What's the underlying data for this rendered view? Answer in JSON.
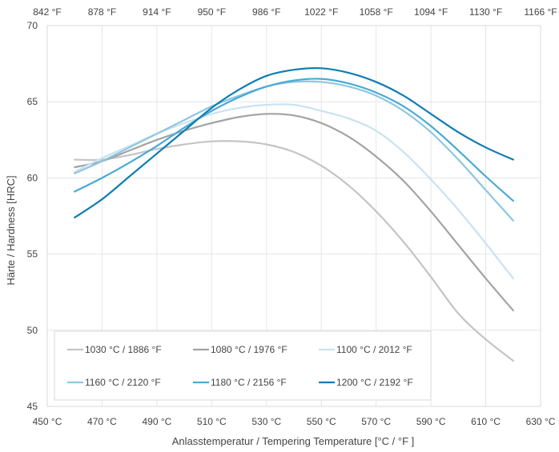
{
  "chart_data": {
    "type": "line",
    "title": "",
    "xlabel": "Anlasstemperatur / Tempering Temperature  [°C / °F ]",
    "ylabel": "Härte / Hardness [HRC]",
    "xlim": [
      450,
      630
    ],
    "ylim": [
      45,
      70
    ],
    "x_ticks": [
      450,
      470,
      490,
      510,
      530,
      550,
      570,
      590,
      610,
      630
    ],
    "x_tick_labels": [
      "450 °C",
      "470 °C",
      "490 °C",
      "510 °C",
      "530 °C",
      "550 °C",
      "570 °C",
      "590 °C",
      "610 °C",
      "630 °C"
    ],
    "x_top_tick_labels": [
      "842 °F",
      "878 °F",
      "914 °F",
      "950 °F",
      "986 °F",
      "1022 °F",
      "1058 °F",
      "1094 °F",
      "1130 °F",
      "1166 °F"
    ],
    "y_ticks": [
      45,
      50,
      55,
      60,
      65,
      70
    ],
    "y_tick_labels": [
      "45",
      "50",
      "55",
      "60",
      "65",
      "70"
    ],
    "grid": true,
    "legend_position": "bottom-left inside",
    "series": [
      {
        "name": "1030 °C / 1886 °F",
        "color": "#c4c4c4",
        "x": [
          460,
          470,
          480,
          490,
          500,
          510,
          520,
          530,
          540,
          550,
          560,
          570,
          580,
          590,
          600,
          610,
          620
        ],
        "y": [
          61.2,
          61.2,
          61.5,
          61.9,
          62.2,
          62.4,
          62.4,
          62.2,
          61.7,
          60.8,
          59.5,
          57.8,
          55.8,
          53.5,
          51.1,
          49.4,
          48.0
        ]
      },
      {
        "name": "1080 °C / 1976 °F",
        "color": "#a3a3a3",
        "x": [
          460,
          470,
          480,
          490,
          500,
          510,
          520,
          530,
          540,
          550,
          560,
          570,
          580,
          590,
          600,
          610,
          620
        ],
        "y": [
          60.7,
          61.1,
          61.8,
          62.5,
          63.1,
          63.6,
          64.0,
          64.2,
          64.1,
          63.6,
          62.7,
          61.4,
          59.8,
          57.8,
          55.6,
          53.4,
          51.3
        ]
      },
      {
        "name": "1100 °C / 2012 °F",
        "color": "#c8e3f1",
        "x": [
          460,
          470,
          480,
          490,
          500,
          510,
          520,
          530,
          540,
          550,
          560,
          570,
          580,
          590,
          600,
          610,
          620
        ],
        "y": [
          60.4,
          61.3,
          62.1,
          62.9,
          63.6,
          64.2,
          64.6,
          64.8,
          64.8,
          64.4,
          63.9,
          63.1,
          61.7,
          59.9,
          57.9,
          55.7,
          53.4
        ]
      },
      {
        "name": "1160 °C / 2120 °F",
        "color": "#8ec6e0",
        "x": [
          460,
          470,
          480,
          490,
          500,
          510,
          520,
          530,
          540,
          550,
          560,
          570,
          580,
          590,
          600,
          610,
          620
        ],
        "y": [
          60.3,
          61.1,
          62.0,
          62.9,
          63.8,
          64.7,
          65.4,
          66.0,
          66.3,
          66.3,
          66.0,
          65.4,
          64.4,
          63.0,
          61.2,
          59.2,
          57.2
        ]
      },
      {
        "name": "1180 °C / 2156 °F",
        "color": "#4aaad3",
        "x": [
          460,
          470,
          480,
          490,
          500,
          510,
          520,
          530,
          540,
          550,
          560,
          570,
          580,
          590,
          600,
          610,
          620
        ],
        "y": [
          59.1,
          60.0,
          61.0,
          62.1,
          63.3,
          64.4,
          65.3,
          66.0,
          66.4,
          66.5,
          66.2,
          65.6,
          64.7,
          63.4,
          61.8,
          60.1,
          58.5
        ]
      },
      {
        "name": "1200 °C / 2192 °F",
        "color": "#0f7db3",
        "x": [
          460,
          470,
          480,
          490,
          500,
          510,
          520,
          530,
          540,
          550,
          560,
          570,
          580,
          590,
          600,
          610,
          620
        ],
        "y": [
          57.4,
          58.6,
          60.1,
          61.6,
          63.1,
          64.6,
          65.8,
          66.7,
          67.1,
          67.2,
          66.9,
          66.3,
          65.4,
          64.2,
          63.0,
          62.0,
          61.2
        ]
      }
    ]
  }
}
